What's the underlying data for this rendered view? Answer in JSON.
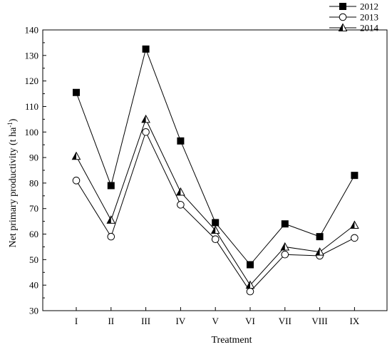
{
  "chart_data": {
    "type": "line",
    "title": "",
    "xlabel": "Treatment",
    "ylabel": "Net primary productivity (t ha",
    "ylabel_superscript": "-1",
    "ylabel_close": ")",
    "categories": [
      "I",
      "II",
      "III",
      "IV",
      "V",
      "VI",
      "VII",
      "VIII",
      "IX"
    ],
    "ylim": [
      30,
      140
    ],
    "yticks": [
      30,
      40,
      50,
      60,
      70,
      80,
      90,
      100,
      110,
      120,
      130,
      140
    ],
    "grid": false,
    "legend_position": "top-right",
    "series": [
      {
        "name": "2012",
        "marker": "filled-square",
        "values": [
          115.5,
          79,
          132.5,
          96.5,
          64.5,
          48,
          64,
          59,
          83
        ]
      },
      {
        "name": "2013",
        "marker": "open-circle",
        "values": [
          81,
          59,
          100,
          71.5,
          58,
          37.5,
          52,
          51.5,
          58.5
        ]
      },
      {
        "name": "2014",
        "marker": "half-filled-triangle",
        "values": [
          90.5,
          65.5,
          105,
          76.5,
          61.5,
          40,
          55,
          53,
          63.5
        ]
      }
    ]
  }
}
